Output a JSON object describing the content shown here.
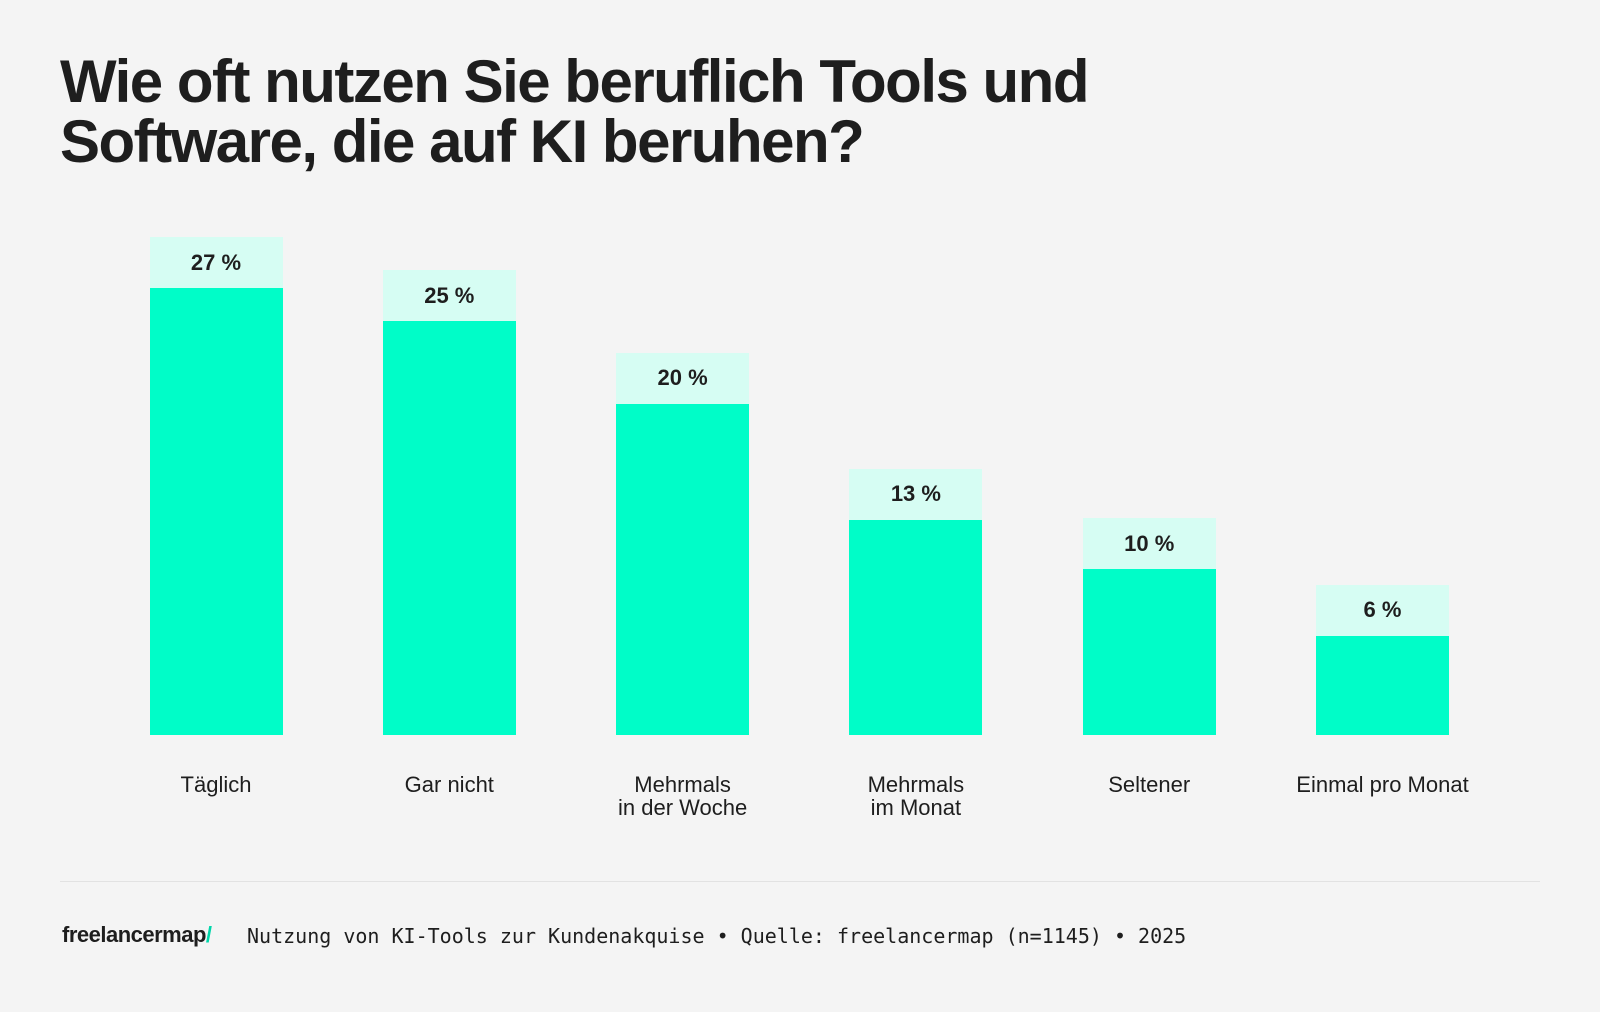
{
  "chart_data": {
    "type": "bar",
    "title": "Wie oft nutzen Sie beruflich Tools und Software, die auf KI beruhen?",
    "categories": [
      "Täglich",
      "Gar nicht",
      "Mehrmals\nin der Woche",
      "Mehrmals\nim Monat",
      "Seltener",
      "Einmal pro Monat"
    ],
    "values": [
      27,
      25,
      20,
      13,
      10,
      6
    ],
    "value_labels": [
      "27 %",
      "25 %",
      "20 %",
      "13 %",
      "10 %",
      "6 %"
    ],
    "color": "#00fdc8",
    "label_color": "#d6fdf3",
    "ylim": [
      0,
      27
    ]
  },
  "footer": {
    "brand": "freelancermap",
    "brand_mark": "/",
    "source": "Nutzung von KI-Tools zur Kundenakquise • Quelle: freelancermap (n=1145) • 2025"
  }
}
